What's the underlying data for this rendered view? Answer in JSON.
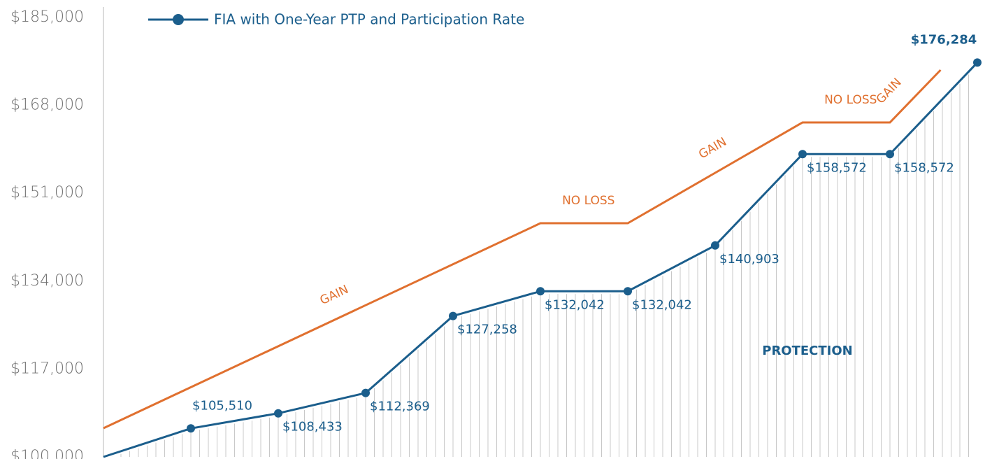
{
  "chart_data": {
    "type": "line",
    "x": [
      0,
      1,
      2,
      3,
      4,
      5,
      6,
      7,
      8,
      9,
      10
    ],
    "xlim": [
      0,
      10
    ],
    "ylim": [
      100000,
      185000
    ],
    "yticks": [
      {
        "value": 100000,
        "label": "$100,000"
      },
      {
        "value": 117000,
        "label": "$117,000"
      },
      {
        "value": 134000,
        "label": "$134,000"
      },
      {
        "value": 151000,
        "label": "$151,000"
      },
      {
        "value": 168000,
        "label": "$168,000"
      },
      {
        "value": 185000,
        "label": "$185,000"
      }
    ],
    "series": [
      {
        "name": "FIA with One-Year PTP and Participation Rate",
        "color": "#1b5e8c",
        "values": [
          100000,
          105510,
          108433,
          112369,
          127258,
          132042,
          132042,
          140903,
          158572,
          158572,
          176284
        ],
        "value_labels": [
          null,
          "$105,510",
          "$108,433",
          "$112,369",
          "$127,258",
          "$132,042",
          "$132,042",
          "$140,903",
          "$158,572",
          "$158,572",
          "$176,284"
        ]
      }
    ],
    "bound_line": {
      "color": "#e0702f",
      "x": [
        0,
        5,
        6,
        8,
        9,
        9.58
      ],
      "values": [
        105550,
        145200,
        145200,
        164700,
        164700,
        174850
      ],
      "segment_labels": [
        "GAIN",
        "NO LOSS",
        "GAIN",
        "NO LOSS",
        "GAIN"
      ]
    },
    "annotation": "PROTECTION"
  }
}
